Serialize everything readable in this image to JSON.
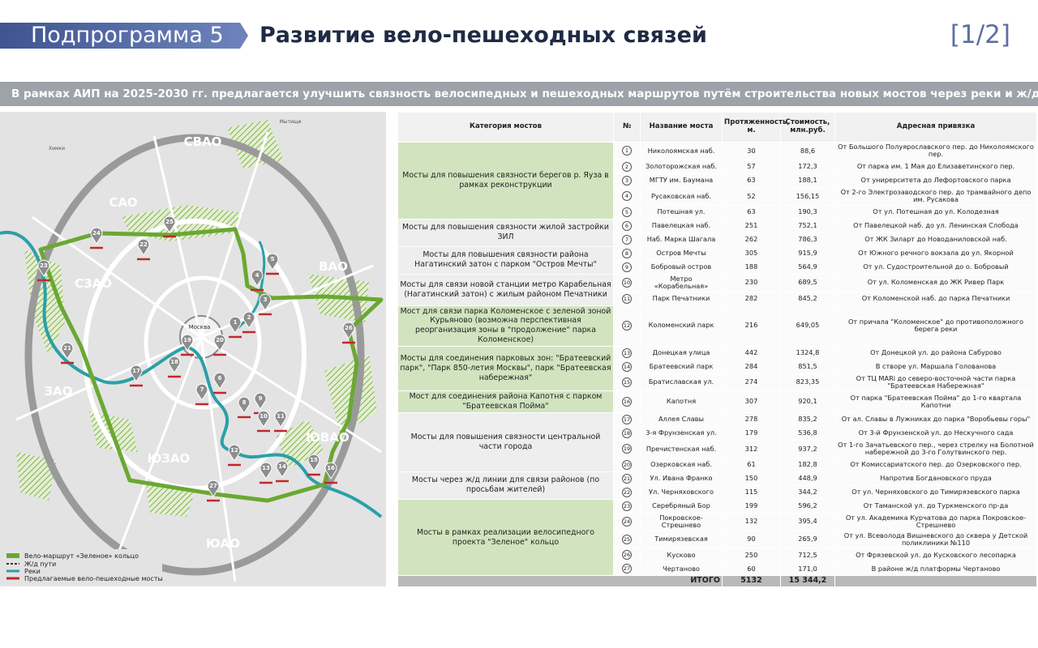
{
  "header": {
    "subprogram": "Подпрограмма 5",
    "title": "Развитие вело-пешеходных связей",
    "page": "[1/2]"
  },
  "banner": "В рамках АИП на 2025-2030 гг. предлагается улучшить связность велосипедных и пешеходных маршрутов путём строительства новых мостов через реки и ж/д",
  "map": {
    "districts": [
      "СВАО",
      "САО",
      "СЗАО",
      "ВАО",
      "ЗАО",
      "ЮЗАО",
      "ЮАО",
      "ЮВАО"
    ],
    "city": "Москва",
    "towns": [
      "Химки",
      "Мытищи"
    ],
    "markers": [
      "1",
      "2",
      "3",
      "4",
      "5",
      "6",
      "7",
      "8",
      "9",
      "10",
      "11",
      "12",
      "13",
      "14",
      "15",
      "16",
      "17",
      "18",
      "19",
      "20",
      "21",
      "22",
      "23",
      "24",
      "25",
      "26",
      "27"
    ],
    "legend": [
      "Вело-маршрут «Зеленое» кольцо",
      "Ж/д пути",
      "Реки",
      "Предлагаемые вело-пешеходные мосты"
    ]
  },
  "table": {
    "headers": [
      "Категория мостов",
      "№",
      "Название моста",
      "Протяженность, м.",
      "Стоимость, млн.руб.",
      "Адресная привязка"
    ],
    "groups": [
      {
        "category": "Мосты для повышения связности берегов р. Яуза в рамках реконструкции",
        "highlight": true,
        "rows": [
          {
            "num": 1,
            "name": "Николоямская наб.",
            "length": 30,
            "cost": "88,6",
            "address": "От Большого Полуярославского пер. до Николоямского пер."
          },
          {
            "num": 2,
            "name": "Золоторожская наб.",
            "length": 57,
            "cost": "172,3",
            "address": "От парка им. 1 Мая до Елизаветинского пер."
          },
          {
            "num": 3,
            "name": "МГТУ им. Баумана",
            "length": 63,
            "cost": "188,1",
            "address": "От унирерситета до Лефортовского парка"
          },
          {
            "num": 4,
            "name": "Русаковская наб.",
            "length": 52,
            "cost": "156,15",
            "address": "От 2-го Электрозаводского пер. до трамвайного депо им. Русакова"
          },
          {
            "num": 5,
            "name": "Потешная ул.",
            "length": 63,
            "cost": "190,3",
            "address": "От ул. Потешная до ул. Колодезная"
          }
        ]
      },
      {
        "category": "Мосты для повышения связности жилой застройки ЗИЛ",
        "highlight": false,
        "rows": [
          {
            "num": 6,
            "name": "Павелецкая наб.",
            "length": 251,
            "cost": "752,1",
            "address": "От Павелецкой наб. до ул. Ленинская Слобода"
          },
          {
            "num": 7,
            "name": "Наб. Марка Шагала",
            "length": 262,
            "cost": "786,3",
            "address": "От ЖК Зиларт до Новоданиловской наб."
          }
        ]
      },
      {
        "category": "Мосты для повышения связности района Нагатинский затон с парком \"Остров Мечты\"",
        "highlight": false,
        "rows": [
          {
            "num": 8,
            "name": "Остров Мечты",
            "length": 305,
            "cost": "915,9",
            "address": "От Южного речного вокзала до ул. Якорной"
          },
          {
            "num": 9,
            "name": "Бобровый остров",
            "length": 188,
            "cost": "564,9",
            "address": "От ул. Судостроительной до о. Бобровый"
          }
        ]
      },
      {
        "category": "Мосты для связи новой станции метро Карабельная (Нагатинский затон) с жилым районом Печатники",
        "highlight": false,
        "rows": [
          {
            "num": 10,
            "name": "Метро «Корабельная»",
            "length": 230,
            "cost": "689,5",
            "address": "От ул. Коломенская до ЖК Ривер Парк"
          },
          {
            "num": 11,
            "name": "Парк Печатники",
            "length": 282,
            "cost": "845,2",
            "address": "От Коломенской наб. до парка Печатники"
          }
        ]
      },
      {
        "category": "Мост для связи парка Коломенское с зеленой зоной Курьяново (возможна перспективная реорганизация зоны в \"продолжение\" парка Коломенское)",
        "highlight": true,
        "rows": [
          {
            "num": 12,
            "name": "Коломенский парк",
            "length": 216,
            "cost": "649,05",
            "address": "От причала \"Коломенское\" до противоположного берега реки"
          }
        ]
      },
      {
        "category": "Мосты для соединения парковых зон: \"Братеевский парк\", \"Парк 850-летия Москвы\", парк \"Братеевская набережная\"",
        "highlight": true,
        "rows": [
          {
            "num": 13,
            "name": "Донецкая улица",
            "length": 442,
            "cost": "1324,8",
            "address": "От Донецкой ул. до района Сабурово"
          },
          {
            "num": 14,
            "name": "Братеевский парк",
            "length": 284,
            "cost": "851,5",
            "address": "В створе ул. Маршала Голованова"
          },
          {
            "num": 15,
            "name": "Братиславская ул.",
            "length": 274,
            "cost": "823,35",
            "address": "От ТЦ MARi до северо-восточной части парка \"Братеевская Набережная\""
          }
        ]
      },
      {
        "category": "Мост для соединения района Капотня с парком \"Братеевская Пойма\"",
        "highlight": true,
        "rows": [
          {
            "num": 16,
            "name": "Капотня",
            "length": 307,
            "cost": "920,1",
            "address": "От парка \"Братеевская Пойма\" до 1-го квартала Капотни"
          }
        ]
      },
      {
        "category": "Мосты для повышения связности центральной части города",
        "highlight": false,
        "rows": [
          {
            "num": 17,
            "name": "Аллея Славы",
            "length": 278,
            "cost": "835,2",
            "address": "От ал. Славы в Лужниках до парка \"Воробьевы горы\""
          },
          {
            "num": 18,
            "name": "3-я Фрунзенская ул.",
            "length": 179,
            "cost": "536,8",
            "address": "От 3-й Фрунзенской ул. до Нескучного сада"
          },
          {
            "num": 19,
            "name": "Пречистенская наб.",
            "length": 312,
            "cost": "937,2",
            "address": "От 1-го Зачатьевского пер., через стрелку на Болотной набережной до 3-го Голутвинского пер."
          },
          {
            "num": 20,
            "name": "Озерковская наб.",
            "length": 61,
            "cost": "182,8",
            "address": "От Комиссариатского пер. до Озерковского пер."
          }
        ]
      },
      {
        "category": "Мосты через ж/д линии для связи районов (по просьбам жителей)",
        "highlight": false,
        "rows": [
          {
            "num": 21,
            "name": "Ул. Ивана Франко",
            "length": 150,
            "cost": "448,9",
            "address": "Напротив Богдановского пруда"
          },
          {
            "num": 22,
            "name": "Ул. Черняховского",
            "length": 115,
            "cost": "344,2",
            "address": "От ул. Черняховского до Тимирязевского парка"
          }
        ]
      },
      {
        "category": "Мосты в рамках реализации велосипедного проекта \"Зеленое\" кольцо",
        "highlight": true,
        "rows": [
          {
            "num": 23,
            "name": "Серебряный Бор",
            "length": 199,
            "cost": "596,2",
            "address": "От Таманской ул. до Туркменского пр-да"
          },
          {
            "num": 24,
            "name": "Покровское-Стрешнево",
            "length": 132,
            "cost": "395,4",
            "address": "От ул. Академика Курчатова до парка Покровское-Стрешнево"
          },
          {
            "num": 25,
            "name": "Тимирязевская",
            "length": 90,
            "cost": "265,9",
            "address": "От ул. Всеволода Вишневского до сквера у Детской поликлиники №110"
          },
          {
            "num": 26,
            "name": "Кусково",
            "length": 250,
            "cost": "712,5",
            "address": "От Фрязевской ул. до Кусковского лесопарка"
          },
          {
            "num": 27,
            "name": "Чертаново",
            "length": 60,
            "cost": "171,0",
            "address": "В районе ж/д платформы Чертаново"
          }
        ]
      }
    ],
    "total": {
      "label": "ИТОГО",
      "length": 5132,
      "cost": "15 344,2"
    }
  }
}
